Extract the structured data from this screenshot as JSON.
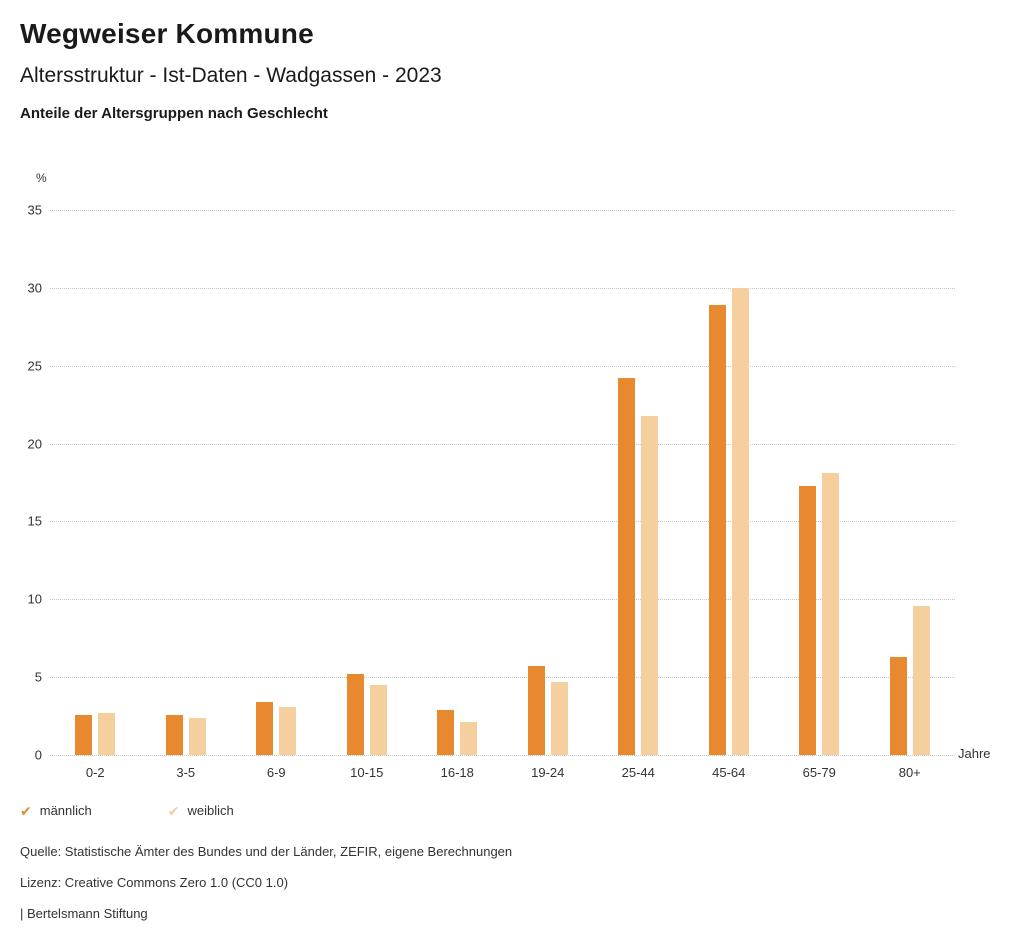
{
  "header": {
    "title": "Wegweiser Kommune",
    "subtitle": "Altersstruktur - Ist-Daten - Wadgassen - 2023",
    "chart_heading": "Anteile der Altersgruppen nach Geschlecht"
  },
  "chart_data": {
    "type": "bar",
    "title": "Anteile der Altersgruppen nach Geschlecht",
    "categories": [
      "0-2",
      "3-5",
      "6-9",
      "10-15",
      "16-18",
      "19-24",
      "25-44",
      "45-64",
      "65-79",
      "80+"
    ],
    "series": [
      {
        "name": "männlich",
        "color": "#E8882F",
        "values": [
          2.6,
          2.6,
          3.4,
          5.2,
          2.9,
          5.7,
          24.2,
          28.9,
          17.3,
          6.3
        ]
      },
      {
        "name": "weiblich",
        "color": "#F6CF9F",
        "values": [
          2.7,
          2.4,
          3.1,
          4.5,
          2.1,
          4.7,
          21.8,
          30.0,
          18.1,
          9.6
        ]
      }
    ],
    "xlabel": "Jahre",
    "ylabel": "%",
    "ylim": [
      0,
      35
    ],
    "yticks": [
      0,
      5,
      10,
      15,
      20,
      25,
      30,
      35
    ],
    "grid": true,
    "legend_position": "bottom"
  },
  "legend": {
    "items": [
      {
        "label": "männlich",
        "color": "#E8882F",
        "mark": "✔"
      },
      {
        "label": "weiblich",
        "color": "#F6CF9F",
        "mark": "✔"
      }
    ]
  },
  "footer": {
    "source": "Quelle: Statistische Ämter des Bundes und der Länder, ZEFIR, eigene Berechnungen",
    "license": "Lizenz: Creative Commons Zero 1.0 (CC0 1.0)",
    "attribution": "| Bertelsmann Stiftung"
  }
}
